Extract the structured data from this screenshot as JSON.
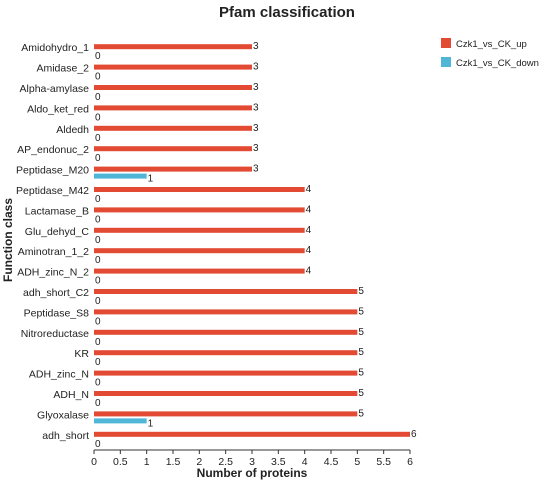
{
  "chart_data": {
    "type": "bar",
    "orientation": "horizontal",
    "title": "Pfam classification",
    "xlabel": "Number of proteins",
    "ylabel": "Function class",
    "xlim": [
      0,
      6
    ],
    "xticks": [
      "0",
      "0.5",
      "1",
      "1.5",
      "2",
      "2.5",
      "3",
      "3.5",
      "4",
      "4.5",
      "5",
      "5.5",
      "6"
    ],
    "grid": false,
    "legend_position": "top-right",
    "categories": [
      "Amidohydro_1",
      "Amidase_2",
      "Alpha-amylase",
      "Aldo_ket_red",
      "Aldedh",
      "AP_endonuc_2",
      "Peptidase_M20",
      "Peptidase_M42",
      "Lactamase_B",
      "Glu_dehyd_C",
      "Aminotran_1_2",
      "ADH_zinc_N_2",
      "adh_short_C2",
      "Peptidase_S8",
      "Nitroreductase",
      "KR",
      "ADH_zinc_N",
      "ADH_N",
      "Glyoxalase",
      "adh_short"
    ],
    "series": [
      {
        "name": "Czk1_vs_CK_up",
        "color": "#e24a33",
        "values": [
          3,
          3,
          3,
          3,
          3,
          3,
          3,
          4,
          4,
          4,
          4,
          4,
          5,
          5,
          5,
          5,
          5,
          5,
          5,
          6
        ]
      },
      {
        "name": "Czk1_vs_CK_down",
        "color": "#4fb6d8",
        "values": [
          0,
          0,
          0,
          0,
          0,
          0,
          1,
          0,
          0,
          0,
          0,
          0,
          0,
          0,
          0,
          0,
          0,
          0,
          1,
          0
        ]
      }
    ]
  }
}
